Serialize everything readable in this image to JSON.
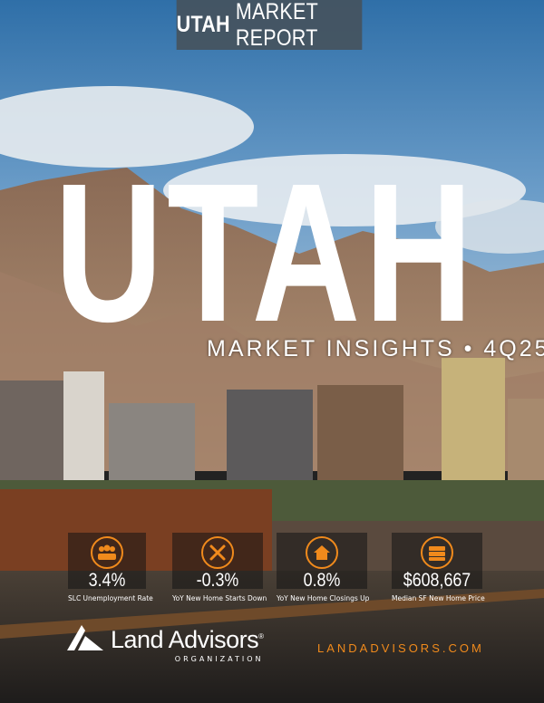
{
  "banner": {
    "bold": "UTAH",
    "rest": "MARKET REPORT"
  },
  "hero": {
    "title": "UTAH",
    "subtitle": "MARKET INSIGHTS • 4Q25"
  },
  "stats": [
    {
      "icon": "people-icon",
      "value": "3.4%",
      "label": "SLC Unemployment Rate"
    },
    {
      "icon": "hammer-wrench-icon",
      "value": "-0.3%",
      "label": "YoY New Home Starts Down"
    },
    {
      "icon": "house-icon",
      "value": "0.8%",
      "label": "YoY New Home Closings Up"
    },
    {
      "icon": "money-stack-icon",
      "value": "$608,667",
      "label": "Median SF New Home Price"
    }
  ],
  "footer": {
    "logo_name": "Land Advisors",
    "logo_mark": "®",
    "logo_sub": "ORGANIZATION",
    "url": "LANDADVISORS.COM"
  },
  "colors": {
    "accent": "#f08a1c",
    "banner": "#46525c"
  }
}
